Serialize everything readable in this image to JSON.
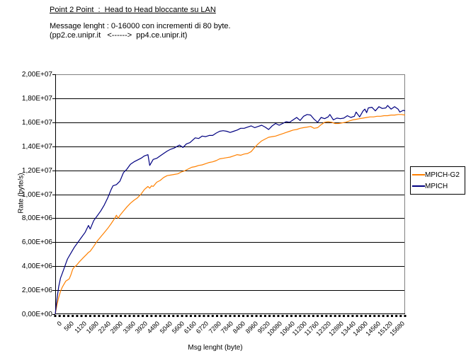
{
  "header": {
    "title": "Point 2 Point  :  Head to Head bloccante su LAN",
    "subtitle_line1": "Message lenght : 0-16000 con incrementi di 80 byte.",
    "subtitle_line2": "(pp2.ce.unipr.it   <------>  pp4.ce.unipr.it)"
  },
  "colors": {
    "background": "#ffffff",
    "gridline": "#000000",
    "plot_border": "#808080",
    "series_mpich_g2": "#ff8000",
    "series_mpich": "#000080",
    "text": "#000000"
  },
  "chart_data": {
    "type": "line",
    "title": "Point 2 Point : Head to Head bloccante su LAN",
    "xlabel": "Msg lenght (byte)",
    "ylabel": "Rate (byte/s)",
    "xlim": [
      0,
      16000
    ],
    "ylim": [
      0,
      20000000
    ],
    "grid": "horizontal",
    "legend_position": "right",
    "y_tick_values": [
      0,
      2000000,
      4000000,
      6000000,
      8000000,
      10000000,
      12000000,
      14000000,
      16000000,
      18000000,
      20000000
    ],
    "y_tick_labels": [
      "0,00E+00",
      "2,00E+06",
      "4,00E+06",
      "6,00E+06",
      "8,00E+06",
      "1,00E+07",
      "1,20E+07",
      "1,40E+07",
      "1,60E+07",
      "1,80E+07",
      "2,00E+07"
    ],
    "x_tick_values": [
      0,
      560,
      1120,
      1680,
      2240,
      2800,
      3360,
      3920,
      4480,
      5040,
      5600,
      6160,
      6720,
      7280,
      7840,
      8400,
      8960,
      9520,
      10080,
      10640,
      11200,
      11760,
      12320,
      12880,
      13440,
      14000,
      14560,
      15120,
      15680
    ],
    "x_tick_labels": [
      "0",
      "560",
      "1120",
      "1680",
      "2240",
      "2800",
      "3360",
      "3920",
      "4480",
      "5040",
      "5600",
      "6160",
      "6720",
      "7280",
      "7840",
      "8400",
      "8960",
      "9520",
      "10080",
      "10640",
      "11200",
      "11760",
      "12320",
      "12880",
      "13440",
      "14000",
      "14560",
      "15120",
      "15680"
    ],
    "x_minor_tick_step": 200,
    "series": [
      {
        "name": "MPICH-G2",
        "color": "#ff8000",
        "points": [
          [
            0,
            0
          ],
          [
            80,
            800000
          ],
          [
            160,
            1400000
          ],
          [
            240,
            1900000
          ],
          [
            320,
            2250000
          ],
          [
            400,
            2500000
          ],
          [
            480,
            2750000
          ],
          [
            560,
            2850000
          ],
          [
            640,
            2950000
          ],
          [
            720,
            3300000
          ],
          [
            800,
            3750000
          ],
          [
            880,
            3950000
          ],
          [
            960,
            4050000
          ],
          [
            1120,
            4400000
          ],
          [
            1280,
            4700000
          ],
          [
            1440,
            5000000
          ],
          [
            1520,
            5150000
          ],
          [
            1600,
            5250000
          ],
          [
            1760,
            5650000
          ],
          [
            1920,
            6100000
          ],
          [
            2080,
            6450000
          ],
          [
            2240,
            6800000
          ],
          [
            2400,
            7150000
          ],
          [
            2560,
            7550000
          ],
          [
            2720,
            8000000
          ],
          [
            2800,
            8250000
          ],
          [
            2880,
            8000000
          ],
          [
            2960,
            8250000
          ],
          [
            3120,
            8600000
          ],
          [
            3280,
            8950000
          ],
          [
            3440,
            9250000
          ],
          [
            3600,
            9500000
          ],
          [
            3760,
            9700000
          ],
          [
            3920,
            10000000
          ],
          [
            4080,
            10400000
          ],
          [
            4240,
            10650000
          ],
          [
            4320,
            10500000
          ],
          [
            4400,
            10700000
          ],
          [
            4480,
            10650000
          ],
          [
            4640,
            11000000
          ],
          [
            4800,
            11150000
          ],
          [
            4960,
            11400000
          ],
          [
            5120,
            11550000
          ],
          [
            5280,
            11600000
          ],
          [
            5440,
            11650000
          ],
          [
            5600,
            11700000
          ],
          [
            5760,
            11850000
          ],
          [
            5920,
            11950000
          ],
          [
            6080,
            12100000
          ],
          [
            6240,
            12250000
          ],
          [
            6400,
            12300000
          ],
          [
            6560,
            12400000
          ],
          [
            6720,
            12450000
          ],
          [
            6880,
            12550000
          ],
          [
            7040,
            12650000
          ],
          [
            7200,
            12700000
          ],
          [
            7360,
            12800000
          ],
          [
            7520,
            12950000
          ],
          [
            7680,
            13000000
          ],
          [
            7840,
            13050000
          ],
          [
            8000,
            13100000
          ],
          [
            8160,
            13200000
          ],
          [
            8320,
            13300000
          ],
          [
            8480,
            13250000
          ],
          [
            8640,
            13350000
          ],
          [
            8800,
            13400000
          ],
          [
            8960,
            13550000
          ],
          [
            9120,
            13900000
          ],
          [
            9280,
            14200000
          ],
          [
            9440,
            14450000
          ],
          [
            9600,
            14600000
          ],
          [
            9760,
            14750000
          ],
          [
            9920,
            14800000
          ],
          [
            10080,
            14850000
          ],
          [
            10240,
            14950000
          ],
          [
            10400,
            15050000
          ],
          [
            10560,
            15150000
          ],
          [
            10720,
            15250000
          ],
          [
            10880,
            15350000
          ],
          [
            11040,
            15400000
          ],
          [
            11200,
            15500000
          ],
          [
            11360,
            15550000
          ],
          [
            11520,
            15600000
          ],
          [
            11680,
            15650000
          ],
          [
            11840,
            15500000
          ],
          [
            12000,
            15550000
          ],
          [
            12160,
            15800000
          ],
          [
            12320,
            16000000
          ],
          [
            12480,
            16050000
          ],
          [
            12640,
            16000000
          ],
          [
            12800,
            15900000
          ],
          [
            12960,
            15900000
          ],
          [
            13120,
            15950000
          ],
          [
            13280,
            16000000
          ],
          [
            13440,
            16100000
          ],
          [
            13600,
            16200000
          ],
          [
            13760,
            16250000
          ],
          [
            13920,
            16300000
          ],
          [
            14080,
            16350000
          ],
          [
            14240,
            16400000
          ],
          [
            14400,
            16450000
          ],
          [
            14560,
            16450000
          ],
          [
            14720,
            16500000
          ],
          [
            14880,
            16500000
          ],
          [
            15040,
            16550000
          ],
          [
            15200,
            16550000
          ],
          [
            15360,
            16600000
          ],
          [
            15520,
            16600000
          ],
          [
            15680,
            16650000
          ],
          [
            15840,
            16650000
          ],
          [
            16000,
            16600000
          ]
        ]
      },
      {
        "name": "MPICH",
        "color": "#000080",
        "points": [
          [
            0,
            0
          ],
          [
            80,
            1300000
          ],
          [
            160,
            2300000
          ],
          [
            240,
            3000000
          ],
          [
            320,
            3400000
          ],
          [
            400,
            3800000
          ],
          [
            480,
            4200000
          ],
          [
            560,
            4600000
          ],
          [
            720,
            5100000
          ],
          [
            880,
            5600000
          ],
          [
            1040,
            6000000
          ],
          [
            1200,
            6400000
          ],
          [
            1360,
            6800000
          ],
          [
            1520,
            7400000
          ],
          [
            1600,
            7100000
          ],
          [
            1760,
            7800000
          ],
          [
            1920,
            8200000
          ],
          [
            2080,
            8600000
          ],
          [
            2240,
            9100000
          ],
          [
            2400,
            9700000
          ],
          [
            2560,
            10400000
          ],
          [
            2640,
            10700000
          ],
          [
            2800,
            10800000
          ],
          [
            2960,
            11100000
          ],
          [
            3120,
            11800000
          ],
          [
            3280,
            12100000
          ],
          [
            3440,
            12500000
          ],
          [
            3600,
            12700000
          ],
          [
            3760,
            12850000
          ],
          [
            3920,
            13000000
          ],
          [
            4080,
            13200000
          ],
          [
            4240,
            13300000
          ],
          [
            4320,
            12400000
          ],
          [
            4480,
            12900000
          ],
          [
            4640,
            13000000
          ],
          [
            4800,
            13200000
          ],
          [
            4960,
            13400000
          ],
          [
            5120,
            13600000
          ],
          [
            5280,
            13750000
          ],
          [
            5440,
            13850000
          ],
          [
            5680,
            14100000
          ],
          [
            5840,
            13900000
          ],
          [
            6000,
            14200000
          ],
          [
            6160,
            14300000
          ],
          [
            6400,
            14700000
          ],
          [
            6560,
            14650000
          ],
          [
            6720,
            14850000
          ],
          [
            6880,
            14800000
          ],
          [
            7040,
            14900000
          ],
          [
            7200,
            14900000
          ],
          [
            7360,
            15100000
          ],
          [
            7520,
            15250000
          ],
          [
            7680,
            15300000
          ],
          [
            7840,
            15250000
          ],
          [
            8000,
            15150000
          ],
          [
            8160,
            15250000
          ],
          [
            8320,
            15350000
          ],
          [
            8480,
            15500000
          ],
          [
            8640,
            15500000
          ],
          [
            8800,
            15600000
          ],
          [
            8960,
            15700000
          ],
          [
            9120,
            15550000
          ],
          [
            9280,
            15650000
          ],
          [
            9440,
            15750000
          ],
          [
            9600,
            15600000
          ],
          [
            9760,
            15400000
          ],
          [
            9920,
            15700000
          ],
          [
            10080,
            15900000
          ],
          [
            10240,
            15750000
          ],
          [
            10400,
            15900000
          ],
          [
            10560,
            16050000
          ],
          [
            10720,
            16000000
          ],
          [
            10880,
            16200000
          ],
          [
            11040,
            16400000
          ],
          [
            11200,
            16150000
          ],
          [
            11360,
            16500000
          ],
          [
            11520,
            16650000
          ],
          [
            11680,
            16600000
          ],
          [
            11840,
            16250000
          ],
          [
            12000,
            16000000
          ],
          [
            12160,
            16400000
          ],
          [
            12320,
            16300000
          ],
          [
            12480,
            16450000
          ],
          [
            12560,
            16650000
          ],
          [
            12720,
            16200000
          ],
          [
            12880,
            16350000
          ],
          [
            13040,
            16300000
          ],
          [
            13200,
            16350000
          ],
          [
            13360,
            16550000
          ],
          [
            13520,
            16400000
          ],
          [
            13680,
            16500000
          ],
          [
            13760,
            16850000
          ],
          [
            13920,
            16450000
          ],
          [
            14080,
            16950000
          ],
          [
            14160,
            17100000
          ],
          [
            14240,
            16800000
          ],
          [
            14320,
            17200000
          ],
          [
            14480,
            17250000
          ],
          [
            14640,
            16950000
          ],
          [
            14800,
            17300000
          ],
          [
            14960,
            17150000
          ],
          [
            15120,
            17200000
          ],
          [
            15200,
            17400000
          ],
          [
            15360,
            17100000
          ],
          [
            15520,
            17300000
          ],
          [
            15680,
            17100000
          ],
          [
            15760,
            16850000
          ],
          [
            15920,
            17000000
          ],
          [
            16000,
            16950000
          ]
        ]
      }
    ]
  },
  "legend": {
    "items": [
      {
        "label": "MPICH-G2",
        "color": "#ff8000"
      },
      {
        "label": "MPICH",
        "color": "#000080"
      }
    ]
  }
}
